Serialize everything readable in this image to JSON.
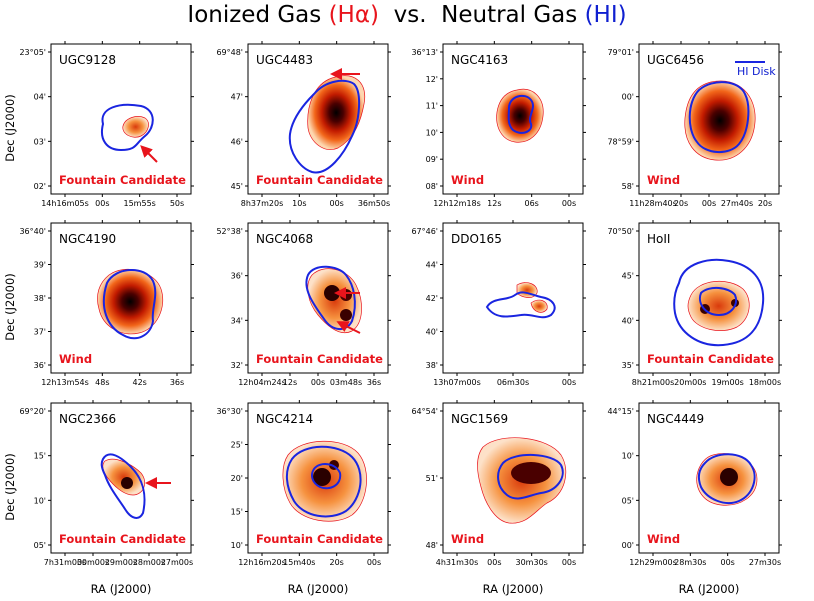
{
  "title": {
    "left": "Ionized Gas",
    "ha": "(Hα)",
    "vs": "vs.",
    "right": "Neutral Gas",
    "hi": "(HI)"
  },
  "colors": {
    "halpha": "#e8141c",
    "hi_contour": "#1a25e0",
    "class_label": "#e8141c"
  },
  "axis_labels": {
    "y": "Dec (J2000)",
    "x": "RA (J2000)"
  },
  "legend": {
    "label": "HI Disk"
  },
  "chart_data": {
    "type": "image-grid",
    "rows": 3,
    "cols": 4,
    "panels": [
      {
        "name": "UGC9128",
        "label": "Fountain Candidate",
        "arrows": [
          "toward-upper-left"
        ],
        "yticks": [
          "23°05'",
          "04'",
          "03'",
          "02'"
        ],
        "xticks": [
          "14h16m05s",
          "00s",
          "15m55s",
          "50s"
        ]
      },
      {
        "name": "UGC4483",
        "label": "Fountain Candidate",
        "arrows": [
          "toward-left"
        ],
        "yticks": [
          "69°48'",
          "47'",
          "46'",
          "45'"
        ],
        "xticks": [
          "8h37m20s",
          "10s",
          "00s",
          "36m50s"
        ]
      },
      {
        "name": "NGC4163",
        "label": "Wind",
        "arrows": [],
        "yticks": [
          "36°13'",
          "12'",
          "11'",
          "10'",
          "09'",
          "08'"
        ],
        "xticks": [
          "12h12m18s",
          "12s",
          "06s",
          "00s"
        ]
      },
      {
        "name": "UGC6456",
        "label": "Wind",
        "arrows": [],
        "yticks": [
          "79°01'",
          "00'",
          "78°59'",
          "58'"
        ],
        "xticks": [
          "11h28m40s",
          "20s",
          "00s",
          "27m40s",
          "20s"
        ]
      },
      {
        "name": "NGC4190",
        "label": "Wind",
        "arrows": [],
        "yticks": [
          "36°40'",
          "39'",
          "38'",
          "37'",
          "36'"
        ],
        "xticks": [
          "12h13m54s",
          "48s",
          "42s",
          "36s"
        ]
      },
      {
        "name": "NGC4068",
        "label": "Fountain Candidate",
        "arrows": [
          "toward-left",
          "toward-upper-left"
        ],
        "yticks": [
          "52°38'",
          "36'",
          "34'",
          "32'"
        ],
        "xticks": [
          "12h04m24s",
          "12s",
          "00s",
          "03m48s",
          "36s"
        ]
      },
      {
        "name": "DDO165",
        "label": "",
        "arrows": [],
        "yticks": [
          "67°46'",
          "44'",
          "42'",
          "40'",
          "38'"
        ],
        "xticks": [
          "13h07m00s",
          "06m30s",
          "00s"
        ]
      },
      {
        "name": "HoII",
        "label": "Fountain Candidate",
        "arrows": [],
        "yticks": [
          "70°50'",
          "45'",
          "40'",
          "35'"
        ],
        "xticks": [
          "8h21m00s",
          "20m00s",
          "19m00s",
          "18m00s"
        ]
      },
      {
        "name": "NGC2366",
        "label": "Fountain Candidate",
        "arrows": [
          "toward-left"
        ],
        "yticks": [
          "69°20'",
          "15'",
          "10'",
          "05'"
        ],
        "xticks": [
          "7h31m00s",
          "30m00s",
          "29m00s",
          "28m00s",
          "27m00s"
        ]
      },
      {
        "name": "NGC4214",
        "label": "Fountain Candidate",
        "arrows": [],
        "yticks": [
          "36°30'",
          "25'",
          "20'",
          "15'",
          "10'"
        ],
        "xticks": [
          "12h16m20s",
          "15m40s",
          "20s",
          "00s"
        ]
      },
      {
        "name": "NGC1569",
        "label": "Wind",
        "arrows": [],
        "yticks": [
          "64°54'",
          "51'",
          "48'"
        ],
        "xticks": [
          "4h31m30s",
          "00s",
          "30m30s",
          "00s"
        ]
      },
      {
        "name": "NGC4449",
        "label": "Wind",
        "arrows": [],
        "yticks": [
          "44°15'",
          "10'",
          "05'",
          "00'"
        ],
        "xticks": [
          "12h29m00s",
          "28m30s",
          "00s",
          "27m30s"
        ]
      }
    ]
  }
}
